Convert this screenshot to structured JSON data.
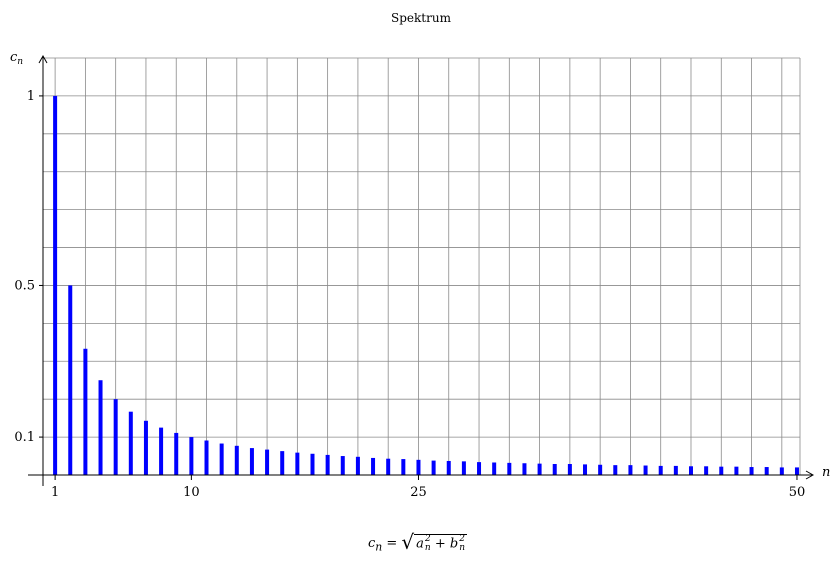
{
  "chart_data": {
    "type": "bar",
    "title": "Spektrum",
    "xlabel": "n",
    "ylabel": "c_n",
    "x": [
      1,
      2,
      3,
      4,
      5,
      6,
      7,
      8,
      9,
      10,
      11,
      12,
      13,
      14,
      15,
      16,
      17,
      18,
      19,
      20,
      21,
      22,
      23,
      24,
      25,
      26,
      27,
      28,
      29,
      30,
      31,
      32,
      33,
      34,
      35,
      36,
      37,
      38,
      39,
      40,
      41,
      42,
      43,
      44,
      45,
      46,
      47,
      48,
      49,
      50
    ],
    "values": [
      1.0,
      0.5,
      0.333,
      0.25,
      0.2,
      0.167,
      0.143,
      0.125,
      0.111,
      0.1,
      0.091,
      0.083,
      0.077,
      0.071,
      0.067,
      0.063,
      0.059,
      0.056,
      0.053,
      0.05,
      0.048,
      0.045,
      0.043,
      0.042,
      0.04,
      0.038,
      0.037,
      0.036,
      0.034,
      0.033,
      0.032,
      0.031,
      0.03,
      0.029,
      0.029,
      0.028,
      0.027,
      0.026,
      0.026,
      0.025,
      0.024,
      0.024,
      0.023,
      0.023,
      0.022,
      0.022,
      0.021,
      0.021,
      0.02,
      0.02
    ],
    "xticks": [
      1,
      10,
      25,
      50
    ],
    "xtick_labels": [
      "1",
      "10",
      "25",
      "50"
    ],
    "yticks": [
      0.1,
      0.5,
      1
    ],
    "ytick_labels": [
      "0.1",
      "0.5",
      "1"
    ],
    "xlim": [
      0.2,
      50.2
    ],
    "ylim": [
      0,
      1.1
    ],
    "grid": true,
    "bar_color": "#0000ff"
  },
  "formula": {
    "lhs": "c",
    "lhs_sub": "n",
    "eq": "=",
    "radicand_a": "a",
    "radicand_plus": "+",
    "radicand_b": "b",
    "sub": "n",
    "sup": "2"
  },
  "axis_labels": {
    "y_main": "c",
    "y_sub": "n",
    "x_main": "n"
  }
}
